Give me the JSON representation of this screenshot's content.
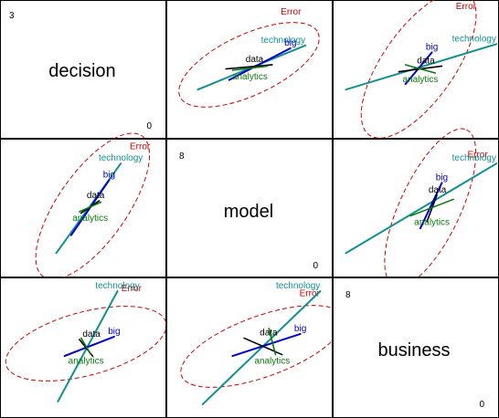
{
  "chart_data": {
    "type": "scatter-matrix",
    "title": "",
    "variables": [
      "decision",
      "model",
      "business"
    ],
    "diagonal": [
      {
        "label": "decision",
        "max": "3",
        "min": "0"
      },
      {
        "label": "model",
        "max": "8",
        "min": "0"
      },
      {
        "label": "business",
        "max": "8",
        "min": "0"
      }
    ],
    "error_label": "Error",
    "colors": {
      "technology": "#119090",
      "big": "#0000cc",
      "data": "#000000",
      "analytics": "#0a7a0a",
      "error": "#d00000"
    },
    "panels": [
      {
        "row": 0,
        "col": 1,
        "error_ellipse": {
          "cx": 0.5,
          "cy": 0.47,
          "rx": 0.46,
          "ry": 0.22,
          "angle": -25
        },
        "vectors": [
          {
            "term": "technology",
            "label": "technology",
            "x1": 0.19,
            "y1": 0.65,
            "x2": 0.84,
            "y2": 0.33
          },
          {
            "term": "big",
            "label": "big",
            "x1": 0.38,
            "y1": 0.58,
            "x2": 0.75,
            "y2": 0.35
          },
          {
            "term": "data",
            "label": "data",
            "x1": 0.36,
            "y1": 0.5,
            "x2": 0.64,
            "y2": 0.47
          },
          {
            "term": "analytics",
            "label": "analytics",
            "x1": 0.4,
            "y1": 0.51,
            "x2": 0.61,
            "y2": 0.48
          }
        ]
      },
      {
        "row": 0,
        "col": 2,
        "error_ellipse": {
          "cx": 0.52,
          "cy": 0.47,
          "rx": 0.52,
          "ry": 0.26,
          "angle": -55
        },
        "vectors": [
          {
            "term": "technology",
            "label": "technology",
            "x1": 0.08,
            "y1": 0.65,
            "x2": 0.99,
            "y2": 0.32
          },
          {
            "term": "big",
            "label": "big",
            "x1": 0.44,
            "y1": 0.61,
            "x2": 0.6,
            "y2": 0.38
          },
          {
            "term": "data",
            "label": "data",
            "x1": 0.4,
            "y1": 0.52,
            "x2": 0.66,
            "y2": 0.48
          },
          {
            "term": "analytics",
            "label": "analytics",
            "x1": 0.44,
            "y1": 0.47,
            "x2": 0.62,
            "y2": 0.53
          }
        ]
      },
      {
        "row": 1,
        "col": 0,
        "error_ellipse": {
          "cx": 0.56,
          "cy": 0.49,
          "rx": 0.52,
          "ry": 0.25,
          "angle": -55
        },
        "vectors": [
          {
            "term": "technology",
            "label": "technology",
            "x1": 0.34,
            "y1": 0.83,
            "x2": 0.73,
            "y2": 0.18
          },
          {
            "term": "big",
            "label": "big",
            "x1": 0.43,
            "y1": 0.7,
            "x2": 0.66,
            "y2": 0.3
          },
          {
            "term": "data",
            "label": "data",
            "x1": 0.49,
            "y1": 0.54,
            "x2": 0.6,
            "y2": 0.45
          },
          {
            "term": "analytics",
            "label": "analytics",
            "x1": 0.48,
            "y1": 0.53,
            "x2": 0.61,
            "y2": 0.46
          }
        ]
      },
      {
        "row": 1,
        "col": 2,
        "error_ellipse": {
          "cx": 0.59,
          "cy": 0.5,
          "rx": 0.52,
          "ry": 0.22,
          "angle": -65
        },
        "vectors": [
          {
            "term": "technology",
            "label": "technology",
            "x1": 0.08,
            "y1": 0.83,
            "x2": 0.99,
            "y2": 0.18
          },
          {
            "term": "big",
            "label": "big",
            "x1": 0.53,
            "y1": 0.65,
            "x2": 0.66,
            "y2": 0.32
          },
          {
            "term": "data",
            "label": "data",
            "x1": 0.57,
            "y1": 0.6,
            "x2": 0.63,
            "y2": 0.41
          },
          {
            "term": "analytics",
            "label": "analytics",
            "x1": 0.47,
            "y1": 0.56,
            "x2": 0.73,
            "y2": 0.44
          }
        ]
      },
      {
        "row": 2,
        "col": 0,
        "error_ellipse": {
          "cx": 0.52,
          "cy": 0.48,
          "rx": 0.5,
          "ry": 0.23,
          "angle": -15
        },
        "vectors": [
          {
            "term": "technology",
            "label": "technology",
            "x1": 0.35,
            "y1": 0.9,
            "x2": 0.71,
            "y2": 0.1
          },
          {
            "term": "big",
            "label": "big",
            "x1": 0.39,
            "y1": 0.57,
            "x2": 0.69,
            "y2": 0.43
          },
          {
            "term": "data",
            "label": "data",
            "x1": 0.48,
            "y1": 0.45,
            "x2": 0.56,
            "y2": 0.57
          },
          {
            "term": "analytics",
            "label": "analytics",
            "x1": 0.49,
            "y1": 0.44,
            "x2": 0.55,
            "y2": 0.56
          }
        ]
      },
      {
        "row": 2,
        "col": 1,
        "error_ellipse": {
          "cx": 0.58,
          "cy": 0.5,
          "rx": 0.52,
          "ry": 0.22,
          "angle": -20
        },
        "vectors": [
          {
            "term": "technology",
            "label": "technology",
            "x1": 0.22,
            "y1": 0.92,
            "x2": 0.93,
            "y2": 0.1
          },
          {
            "term": "big",
            "label": "big",
            "x1": 0.4,
            "y1": 0.57,
            "x2": 0.81,
            "y2": 0.41
          },
          {
            "term": "data",
            "label": "data",
            "x1": 0.47,
            "y1": 0.44,
            "x2": 0.7,
            "y2": 0.56
          },
          {
            "term": "analytics",
            "label": "analytics",
            "x1": 0.62,
            "y1": 0.37,
            "x2": 0.66,
            "y2": 0.56
          }
        ]
      }
    ]
  }
}
